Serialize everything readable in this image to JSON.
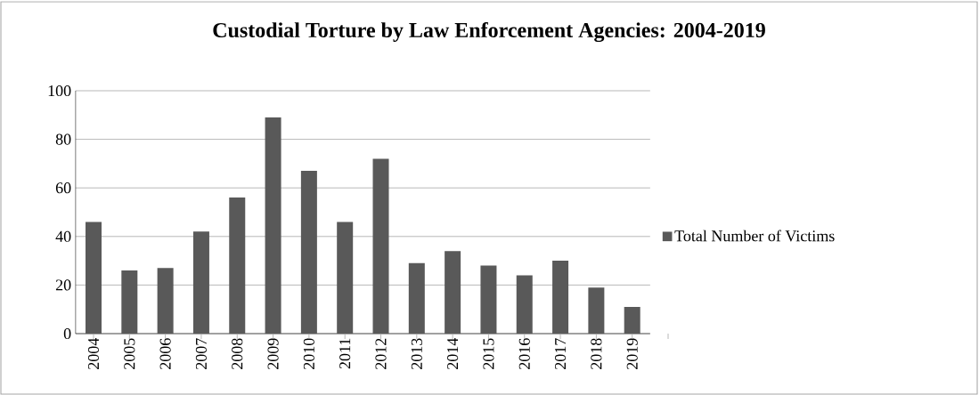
{
  "chart_data": {
    "type": "bar",
    "title": "Custodial Torture by Law Enforcement Agencies: 2004-2019",
    "categories": [
      "2004",
      "2005",
      "2006",
      "2007",
      "2008",
      "2009",
      "2010",
      "2011",
      "2012",
      "2013",
      "2014",
      "2015",
      "2016",
      "2017",
      "2018",
      "2019"
    ],
    "series": [
      {
        "name": "Total Number of Victims",
        "color": "#595959",
        "values": [
          46,
          26,
          27,
          42,
          56,
          89,
          67,
          46,
          72,
          29,
          34,
          28,
          24,
          30,
          19,
          11
        ]
      }
    ],
    "ylim": [
      0,
      100
    ],
    "yticks": [
      0,
      20,
      40,
      60,
      80,
      100
    ],
    "grid": "y",
    "legend": "right"
  }
}
